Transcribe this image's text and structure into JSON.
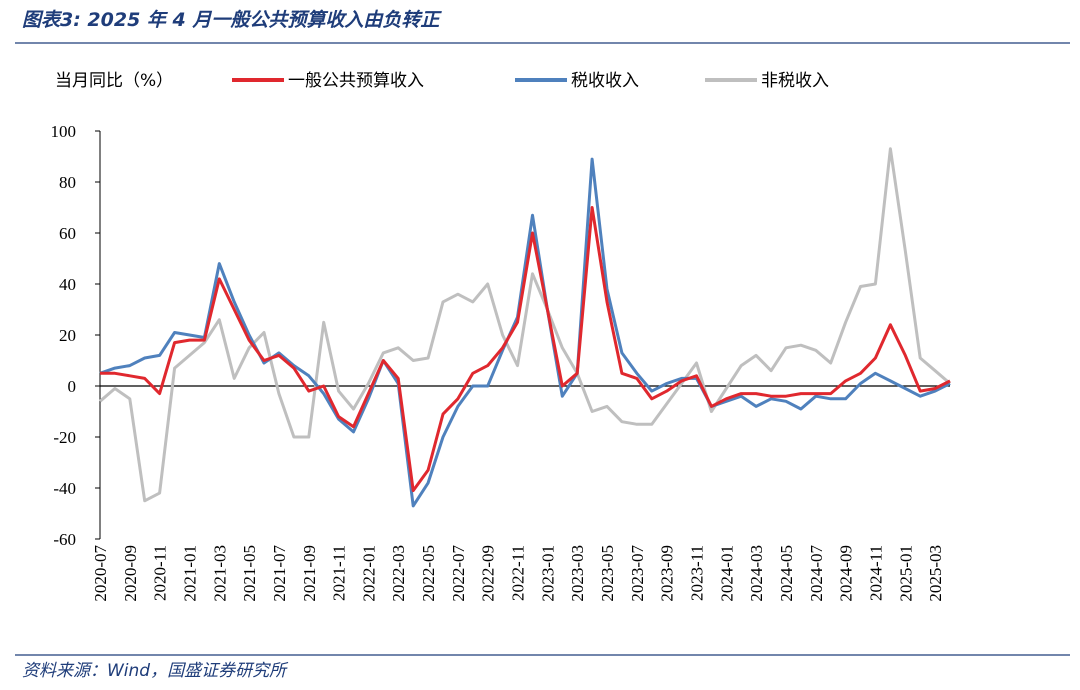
{
  "chart_data": {
    "type": "line",
    "title": "图表3: 2025 年 4 月一般公共预算收入由负转正",
    "y_label": "当月同比（%）",
    "source": "资料来源：Wind，国盛证券研究所",
    "categories": [
      "2020-07",
      null,
      "2020-09",
      null,
      "2020-11",
      null,
      "2021-01",
      null,
      "2021-03",
      null,
      "2021-05",
      null,
      "2021-07",
      null,
      "2021-09",
      null,
      "2021-11",
      null,
      "2022-01",
      null,
      "2022-03",
      null,
      "2022-05",
      null,
      "2022-07",
      null,
      "2022-09",
      null,
      "2022-11",
      null,
      "2023-01",
      null,
      "2023-03",
      null,
      "2023-05",
      null,
      "2023-07",
      null,
      "2023-09",
      null,
      "2023-11",
      null,
      "2024-01",
      null,
      "2024-03",
      null,
      "2024-05",
      null,
      "2024-07",
      null,
      "2024-09",
      null,
      "2024-11",
      null,
      "2025-01",
      null,
      "2025-03",
      null
    ],
    "series": [
      {
        "name": "一般公共预算收入",
        "color": "#e0282e",
        "values": [
          5,
          5,
          4,
          3,
          -3,
          17,
          18,
          18,
          42,
          30,
          18,
          10,
          12,
          7,
          -2,
          0,
          -12,
          -16,
          -3,
          10,
          3,
          -41,
          -33,
          -11,
          -5,
          5,
          8,
          15,
          25,
          60,
          30,
          0,
          5,
          70,
          33,
          5,
          3,
          -5,
          -2,
          2,
          4,
          -8,
          -5,
          -3,
          -3,
          -4,
          -4,
          -3,
          -3,
          -3,
          2,
          5,
          11,
          24,
          12,
          -2,
          -1,
          2
        ]
      },
      {
        "name": "税收收入",
        "color": "#4f81bd",
        "values": [
          5,
          7,
          8,
          11,
          12,
          21,
          20,
          19,
          48,
          33,
          20,
          9,
          13,
          8,
          4,
          -3,
          -13,
          -18,
          -5,
          10,
          1,
          -47,
          -38,
          -20,
          -8,
          0,
          0,
          14,
          27,
          67,
          30,
          -4,
          5,
          89,
          38,
          13,
          5,
          -2,
          1,
          3,
          3,
          -8,
          -6,
          -4,
          -8,
          -5,
          -6,
          -9,
          -4,
          -5,
          -5,
          1,
          5,
          2,
          -1,
          -4,
          -2,
          1
        ]
      },
      {
        "name": "非税收入",
        "color": "#bfbfbf",
        "values": [
          -6,
          -1,
          -5,
          -45,
          -42,
          7,
          12,
          17,
          26,
          3,
          15,
          21,
          -3,
          -20,
          -20,
          25,
          -2,
          -9,
          1,
          13,
          15,
          10,
          11,
          33,
          36,
          33,
          40,
          20,
          8,
          44,
          30,
          15,
          5,
          -10,
          -8,
          -14,
          -15,
          -15,
          -7,
          1,
          9,
          -10,
          -1,
          8,
          12,
          6,
          15,
          16,
          14,
          9,
          25,
          39,
          40,
          93,
          53,
          11,
          6,
          1
        ]
      }
    ],
    "ylim": [
      -60,
      100
    ],
    "yticks": [
      -60,
      -40,
      -20,
      0,
      20,
      40,
      60,
      80,
      100
    ]
  }
}
